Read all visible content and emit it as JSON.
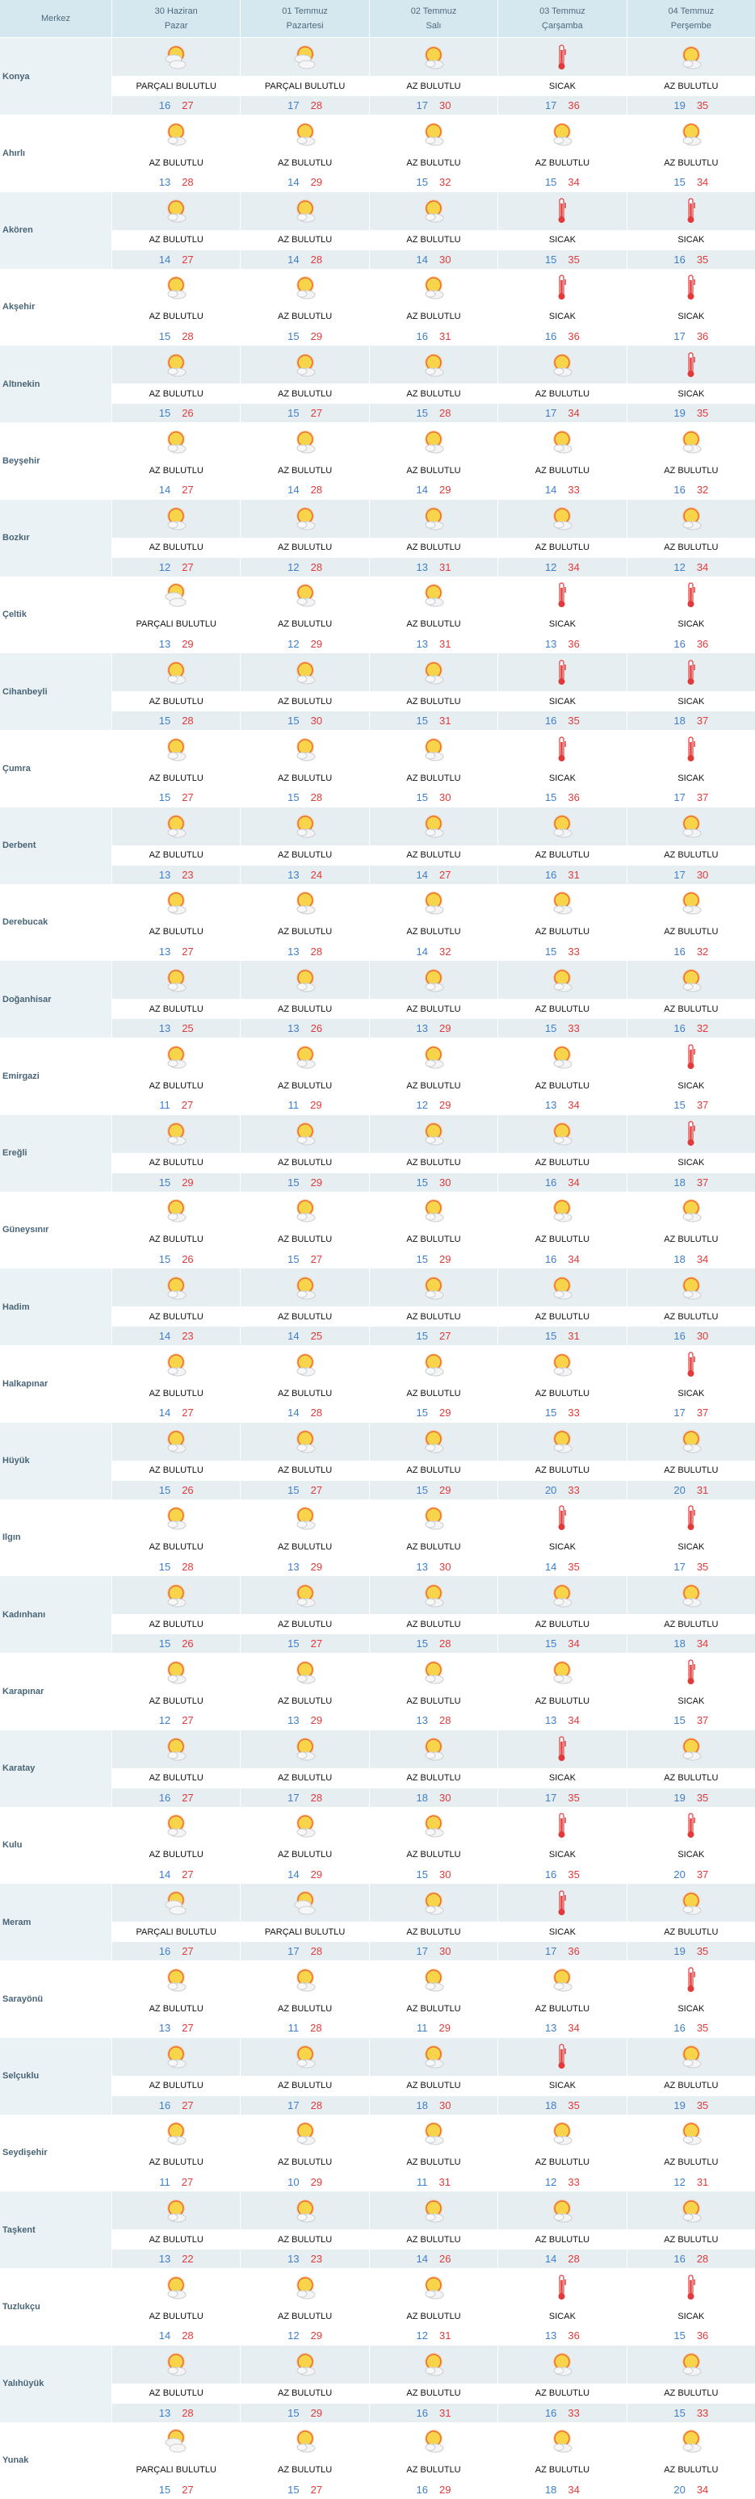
{
  "header": {
    "first_col": "Merkez",
    "days": [
      {
        "date": "30 Haziran",
        "weekday": "Pazar"
      },
      {
        "date": "01 Temmuz",
        "weekday": "Pazartesi"
      },
      {
        "date": "02 Temmuz",
        "weekday": "Salı"
      },
      {
        "date": "03 Temmuz",
        "weekday": "Çarşamba"
      },
      {
        "date": "04 Temmuz",
        "weekday": "Perşembe"
      }
    ]
  },
  "icons": {
    "AZ BULUTLU": "sun-cloud-icon",
    "PARÇALI BULUTLU": "partly-cloudy-icon",
    "SICAK": "thermometer-icon"
  },
  "colors": {
    "low": "#3d7fc8",
    "high": "#e03a3a",
    "header_bg": "#d5e8f0",
    "alt_row_bg": "#e7eef2"
  },
  "rows": [
    {
      "city": "Konya",
      "days": [
        [
          "PARÇALI BULUTLU",
          16,
          27
        ],
        [
          "PARÇALI BULUTLU",
          17,
          28
        ],
        [
          "AZ BULUTLU",
          17,
          30
        ],
        [
          "SICAK",
          17,
          36
        ],
        [
          "AZ BULUTLU",
          19,
          35
        ]
      ]
    },
    {
      "city": "Ahırlı",
      "days": [
        [
          "AZ BULUTLU",
          13,
          28
        ],
        [
          "AZ BULUTLU",
          14,
          29
        ],
        [
          "AZ BULUTLU",
          15,
          32
        ],
        [
          "AZ BULUTLU",
          15,
          34
        ],
        [
          "AZ BULUTLU",
          15,
          34
        ]
      ]
    },
    {
      "city": "Akören",
      "days": [
        [
          "AZ BULUTLU",
          14,
          27
        ],
        [
          "AZ BULUTLU",
          14,
          28
        ],
        [
          "AZ BULUTLU",
          14,
          30
        ],
        [
          "SICAK",
          15,
          35
        ],
        [
          "SICAK",
          16,
          35
        ]
      ]
    },
    {
      "city": "Akşehir",
      "days": [
        [
          "AZ BULUTLU",
          15,
          28
        ],
        [
          "AZ BULUTLU",
          15,
          29
        ],
        [
          "AZ BULUTLU",
          16,
          31
        ],
        [
          "SICAK",
          16,
          36
        ],
        [
          "SICAK",
          17,
          36
        ]
      ]
    },
    {
      "city": "Altınekin",
      "days": [
        [
          "AZ BULUTLU",
          15,
          26
        ],
        [
          "AZ BULUTLU",
          15,
          27
        ],
        [
          "AZ BULUTLU",
          15,
          28
        ],
        [
          "AZ BULUTLU",
          17,
          34
        ],
        [
          "SICAK",
          19,
          35
        ]
      ]
    },
    {
      "city": "Beyşehir",
      "days": [
        [
          "AZ BULUTLU",
          14,
          27
        ],
        [
          "AZ BULUTLU",
          14,
          28
        ],
        [
          "AZ BULUTLU",
          14,
          29
        ],
        [
          "AZ BULUTLU",
          14,
          33
        ],
        [
          "AZ BULUTLU",
          16,
          32
        ]
      ]
    },
    {
      "city": "Bozkır",
      "days": [
        [
          "AZ BULUTLU",
          12,
          27
        ],
        [
          "AZ BULUTLU",
          12,
          28
        ],
        [
          "AZ BULUTLU",
          13,
          31
        ],
        [
          "AZ BULUTLU",
          12,
          34
        ],
        [
          "AZ BULUTLU",
          12,
          34
        ]
      ]
    },
    {
      "city": "Çeltik",
      "days": [
        [
          "PARÇALI BULUTLU",
          13,
          29
        ],
        [
          "AZ BULUTLU",
          12,
          29
        ],
        [
          "AZ BULUTLU",
          13,
          31
        ],
        [
          "SICAK",
          13,
          36
        ],
        [
          "SICAK",
          16,
          36
        ]
      ]
    },
    {
      "city": "Cihanbeyli",
      "days": [
        [
          "AZ BULUTLU",
          15,
          28
        ],
        [
          "AZ BULUTLU",
          15,
          30
        ],
        [
          "AZ BULUTLU",
          15,
          31
        ],
        [
          "SICAK",
          16,
          35
        ],
        [
          "SICAK",
          18,
          37
        ]
      ]
    },
    {
      "city": "Çumra",
      "days": [
        [
          "AZ BULUTLU",
          15,
          27
        ],
        [
          "AZ BULUTLU",
          15,
          28
        ],
        [
          "AZ BULUTLU",
          15,
          30
        ],
        [
          "SICAK",
          15,
          36
        ],
        [
          "SICAK",
          17,
          37
        ]
      ]
    },
    {
      "city": "Derbent",
      "days": [
        [
          "AZ BULUTLU",
          13,
          23
        ],
        [
          "AZ BULUTLU",
          13,
          24
        ],
        [
          "AZ BULUTLU",
          14,
          27
        ],
        [
          "AZ BULUTLU",
          16,
          31
        ],
        [
          "AZ BULUTLU",
          17,
          30
        ]
      ]
    },
    {
      "city": "Derebucak",
      "days": [
        [
          "AZ BULUTLU",
          13,
          27
        ],
        [
          "AZ BULUTLU",
          13,
          28
        ],
        [
          "AZ BULUTLU",
          14,
          32
        ],
        [
          "AZ BULUTLU",
          15,
          33
        ],
        [
          "AZ BULUTLU",
          16,
          32
        ]
      ]
    },
    {
      "city": "Doğanhisar",
      "days": [
        [
          "AZ BULUTLU",
          13,
          25
        ],
        [
          "AZ BULUTLU",
          13,
          26
        ],
        [
          "AZ BULUTLU",
          13,
          29
        ],
        [
          "AZ BULUTLU",
          15,
          33
        ],
        [
          "AZ BULUTLU",
          16,
          32
        ]
      ]
    },
    {
      "city": "Emirgazi",
      "days": [
        [
          "AZ BULUTLU",
          11,
          27
        ],
        [
          "AZ BULUTLU",
          11,
          29
        ],
        [
          "AZ BULUTLU",
          12,
          29
        ],
        [
          "AZ BULUTLU",
          13,
          34
        ],
        [
          "SICAK",
          15,
          37
        ]
      ]
    },
    {
      "city": "Ereğli",
      "days": [
        [
          "AZ BULUTLU",
          15,
          29
        ],
        [
          "AZ BULUTLU",
          15,
          29
        ],
        [
          "AZ BULUTLU",
          15,
          30
        ],
        [
          "AZ BULUTLU",
          16,
          34
        ],
        [
          "SICAK",
          18,
          37
        ]
      ]
    },
    {
      "city": "Güneysınır",
      "days": [
        [
          "AZ BULUTLU",
          15,
          26
        ],
        [
          "AZ BULUTLU",
          15,
          27
        ],
        [
          "AZ BULUTLU",
          15,
          29
        ],
        [
          "AZ BULUTLU",
          16,
          34
        ],
        [
          "AZ BULUTLU",
          18,
          34
        ]
      ]
    },
    {
      "city": "Hadim",
      "days": [
        [
          "AZ BULUTLU",
          14,
          23
        ],
        [
          "AZ BULUTLU",
          14,
          25
        ],
        [
          "AZ BULUTLU",
          15,
          27
        ],
        [
          "AZ BULUTLU",
          15,
          31
        ],
        [
          "AZ BULUTLU",
          16,
          30
        ]
      ]
    },
    {
      "city": "Halkapınar",
      "days": [
        [
          "AZ BULUTLU",
          14,
          27
        ],
        [
          "AZ BULUTLU",
          14,
          28
        ],
        [
          "AZ BULUTLU",
          15,
          29
        ],
        [
          "AZ BULUTLU",
          15,
          33
        ],
        [
          "SICAK",
          17,
          37
        ]
      ]
    },
    {
      "city": "Hüyük",
      "days": [
        [
          "AZ BULUTLU",
          15,
          26
        ],
        [
          "AZ BULUTLU",
          15,
          27
        ],
        [
          "AZ BULUTLU",
          15,
          29
        ],
        [
          "AZ BULUTLU",
          20,
          33
        ],
        [
          "AZ BULUTLU",
          20,
          31
        ]
      ]
    },
    {
      "city": "Ilgın",
      "days": [
        [
          "AZ BULUTLU",
          15,
          28
        ],
        [
          "AZ BULUTLU",
          13,
          29
        ],
        [
          "AZ BULUTLU",
          13,
          30
        ],
        [
          "SICAK",
          14,
          35
        ],
        [
          "SICAK",
          17,
          35
        ]
      ]
    },
    {
      "city": "Kadınhanı",
      "days": [
        [
          "AZ BULUTLU",
          15,
          26
        ],
        [
          "AZ BULUTLU",
          15,
          27
        ],
        [
          "AZ BULUTLU",
          15,
          28
        ],
        [
          "AZ BULUTLU",
          15,
          34
        ],
        [
          "AZ BULUTLU",
          18,
          34
        ]
      ]
    },
    {
      "city": "Karapınar",
      "days": [
        [
          "AZ BULUTLU",
          12,
          27
        ],
        [
          "AZ BULUTLU",
          13,
          29
        ],
        [
          "AZ BULUTLU",
          13,
          28
        ],
        [
          "AZ BULUTLU",
          13,
          34
        ],
        [
          "SICAK",
          15,
          37
        ]
      ]
    },
    {
      "city": "Karatay",
      "days": [
        [
          "AZ BULUTLU",
          16,
          27
        ],
        [
          "AZ BULUTLU",
          17,
          28
        ],
        [
          "AZ BULUTLU",
          18,
          30
        ],
        [
          "SICAK",
          17,
          35
        ],
        [
          "AZ BULUTLU",
          19,
          35
        ]
      ]
    },
    {
      "city": "Kulu",
      "days": [
        [
          "AZ BULUTLU",
          14,
          27
        ],
        [
          "AZ BULUTLU",
          14,
          29
        ],
        [
          "AZ BULUTLU",
          15,
          30
        ],
        [
          "SICAK",
          16,
          35
        ],
        [
          "SICAK",
          20,
          37
        ]
      ]
    },
    {
      "city": "Meram",
      "days": [
        [
          "PARÇALI BULUTLU",
          16,
          27
        ],
        [
          "PARÇALI BULUTLU",
          17,
          28
        ],
        [
          "AZ BULUTLU",
          17,
          30
        ],
        [
          "SICAK",
          17,
          36
        ],
        [
          "AZ BULUTLU",
          19,
          35
        ]
      ]
    },
    {
      "city": "Sarayönü",
      "days": [
        [
          "AZ BULUTLU",
          13,
          27
        ],
        [
          "AZ BULUTLU",
          11,
          28
        ],
        [
          "AZ BULUTLU",
          11,
          29
        ],
        [
          "AZ BULUTLU",
          13,
          34
        ],
        [
          "SICAK",
          16,
          35
        ]
      ]
    },
    {
      "city": "Selçuklu",
      "days": [
        [
          "AZ BULUTLU",
          16,
          27
        ],
        [
          "AZ BULUTLU",
          17,
          28
        ],
        [
          "AZ BULUTLU",
          18,
          30
        ],
        [
          "SICAK",
          18,
          35
        ],
        [
          "AZ BULUTLU",
          19,
          35
        ]
      ]
    },
    {
      "city": "Seydişehir",
      "days": [
        [
          "AZ BULUTLU",
          11,
          27
        ],
        [
          "AZ BULUTLU",
          10,
          29
        ],
        [
          "AZ BULUTLU",
          11,
          31
        ],
        [
          "AZ BULUTLU",
          12,
          33
        ],
        [
          "AZ BULUTLU",
          12,
          31
        ]
      ]
    },
    {
      "city": "Taşkent",
      "days": [
        [
          "AZ BULUTLU",
          13,
          22
        ],
        [
          "AZ BULUTLU",
          13,
          23
        ],
        [
          "AZ BULUTLU",
          14,
          26
        ],
        [
          "AZ BULUTLU",
          14,
          28
        ],
        [
          "AZ BULUTLU",
          16,
          28
        ]
      ]
    },
    {
      "city": "Tuzlukçu",
      "days": [
        [
          "AZ BULUTLU",
          14,
          28
        ],
        [
          "AZ BULUTLU",
          12,
          29
        ],
        [
          "AZ BULUTLU",
          12,
          31
        ],
        [
          "SICAK",
          13,
          36
        ],
        [
          "SICAK",
          15,
          36
        ]
      ]
    },
    {
      "city": "Yalıhüyük",
      "days": [
        [
          "AZ BULUTLU",
          13,
          28
        ],
        [
          "AZ BULUTLU",
          15,
          29
        ],
        [
          "AZ BULUTLU",
          16,
          31
        ],
        [
          "AZ BULUTLU",
          16,
          33
        ],
        [
          "AZ BULUTLU",
          15,
          33
        ]
      ]
    },
    {
      "city": "Yunak",
      "days": [
        [
          "PARÇALI BULUTLU",
          15,
          27
        ],
        [
          "AZ BULUTLU",
          15,
          27
        ],
        [
          "AZ BULUTLU",
          16,
          29
        ],
        [
          "AZ BULUTLU",
          18,
          34
        ],
        [
          "AZ BULUTLU",
          20,
          34
        ]
      ]
    }
  ]
}
